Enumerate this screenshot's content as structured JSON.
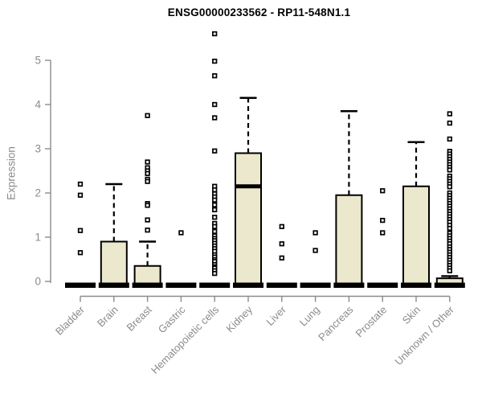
{
  "chart_data": {
    "type": "boxplot",
    "title": "ENSG00000233562 - RP11-548N1.1",
    "ylabel": "Expression",
    "xlabel": "",
    "ylim": [
      0,
      5.7
    ],
    "yticks": [
      0,
      1,
      2,
      3,
      4,
      5
    ],
    "grid": false,
    "legend": "none",
    "box_fill_color": "#ece8cd",
    "box_stroke_color": "#000000",
    "axis_color": "#8b8b8b",
    "title_color": "#000000",
    "categories": [
      "Bladder",
      "Brain",
      "Breast",
      "Gastric",
      "Hematopoietic cells",
      "Kidney",
      "Liver",
      "Lung",
      "Pancreas",
      "Prostate",
      "Skin",
      "Unknown / Other"
    ],
    "series": [
      {
        "name": "Bladder",
        "q1": 0,
        "median": 0,
        "q3": 0,
        "whisker_low": 0,
        "whisker_high": 0,
        "outliers": [
          2.2,
          1.95,
          1.15,
          0.65
        ]
      },
      {
        "name": "Brain",
        "q1": 0,
        "median": 0,
        "q3": 0.9,
        "whisker_low": 0,
        "whisker_high": 2.2,
        "outliers": []
      },
      {
        "name": "Breast",
        "q1": 0,
        "median": 0,
        "q3": 0.35,
        "whisker_low": 0,
        "whisker_high": 0.9,
        "outliers": [
          3.75,
          2.7,
          2.57,
          2.5,
          2.44,
          2.31,
          2.26,
          1.76,
          1.72,
          1.39,
          1.16
        ]
      },
      {
        "name": "Gastric",
        "q1": 0,
        "median": 0,
        "q3": 0,
        "whisker_low": 0,
        "whisker_high": 0,
        "outliers": [
          1.1
        ]
      },
      {
        "name": "Hematopoietic cells",
        "q1": 0,
        "median": 0,
        "q3": 0,
        "whisker_low": 0,
        "whisker_high": 0,
        "outliers": [
          5.6,
          4.98,
          4.65,
          4.0,
          3.7,
          2.95,
          2.15,
          2.07,
          1.98,
          1.91,
          1.84,
          1.73,
          1.62,
          1.45,
          1.31,
          1.24,
          1.13,
          1.03,
          0.97,
          0.92,
          0.86,
          0.8,
          0.74,
          0.68,
          0.6,
          0.55,
          0.49,
          0.45,
          0.38,
          0.33,
          0.3,
          0.24,
          0.18
        ]
      },
      {
        "name": "Kidney",
        "q1": 0,
        "median": 2.15,
        "q3": 2.9,
        "whisker_low": 0,
        "whisker_high": 4.15,
        "outliers": []
      },
      {
        "name": "Liver",
        "q1": 0,
        "median": 0,
        "q3": 0,
        "whisker_low": 0,
        "whisker_high": 0,
        "outliers": [
          1.24,
          0.85,
          0.53
        ]
      },
      {
        "name": "Lung",
        "q1": 0,
        "median": 0,
        "q3": 0,
        "whisker_low": 0,
        "whisker_high": 0,
        "outliers": [
          1.1,
          0.7
        ]
      },
      {
        "name": "Pancreas",
        "q1": 0,
        "median": 0,
        "q3": 1.95,
        "whisker_low": 0,
        "whisker_high": 3.85,
        "outliers": []
      },
      {
        "name": "Prostate",
        "q1": 0,
        "median": 0,
        "q3": 0,
        "whisker_low": 0,
        "whisker_high": 0,
        "outliers": [
          2.05,
          1.38,
          1.1
        ]
      },
      {
        "name": "Skin",
        "q1": 0,
        "median": 0,
        "q3": 2.15,
        "whisker_low": 0,
        "whisker_high": 3.15,
        "outliers": []
      },
      {
        "name": "Unknown / Other",
        "q1": 0,
        "median": 0,
        "q3": 0.07,
        "whisker_low": 0,
        "whisker_high": 0.12,
        "outliers": [
          3.79,
          3.58,
          3.22,
          2.94,
          2.88,
          2.82,
          2.76,
          2.7,
          2.64,
          2.58,
          2.52,
          2.38,
          2.32,
          2.26,
          2.2,
          2.14,
          2.0,
          1.94,
          1.88,
          1.82,
          1.76,
          1.7,
          1.64,
          1.58,
          1.52,
          1.46,
          1.4,
          1.34,
          1.27,
          1.2,
          1.09,
          1.03,
          0.97,
          0.91,
          0.85,
          0.78,
          0.72,
          0.66,
          0.6,
          0.54,
          0.48,
          0.42,
          0.36,
          0.3,
          0.24
        ]
      }
    ]
  }
}
